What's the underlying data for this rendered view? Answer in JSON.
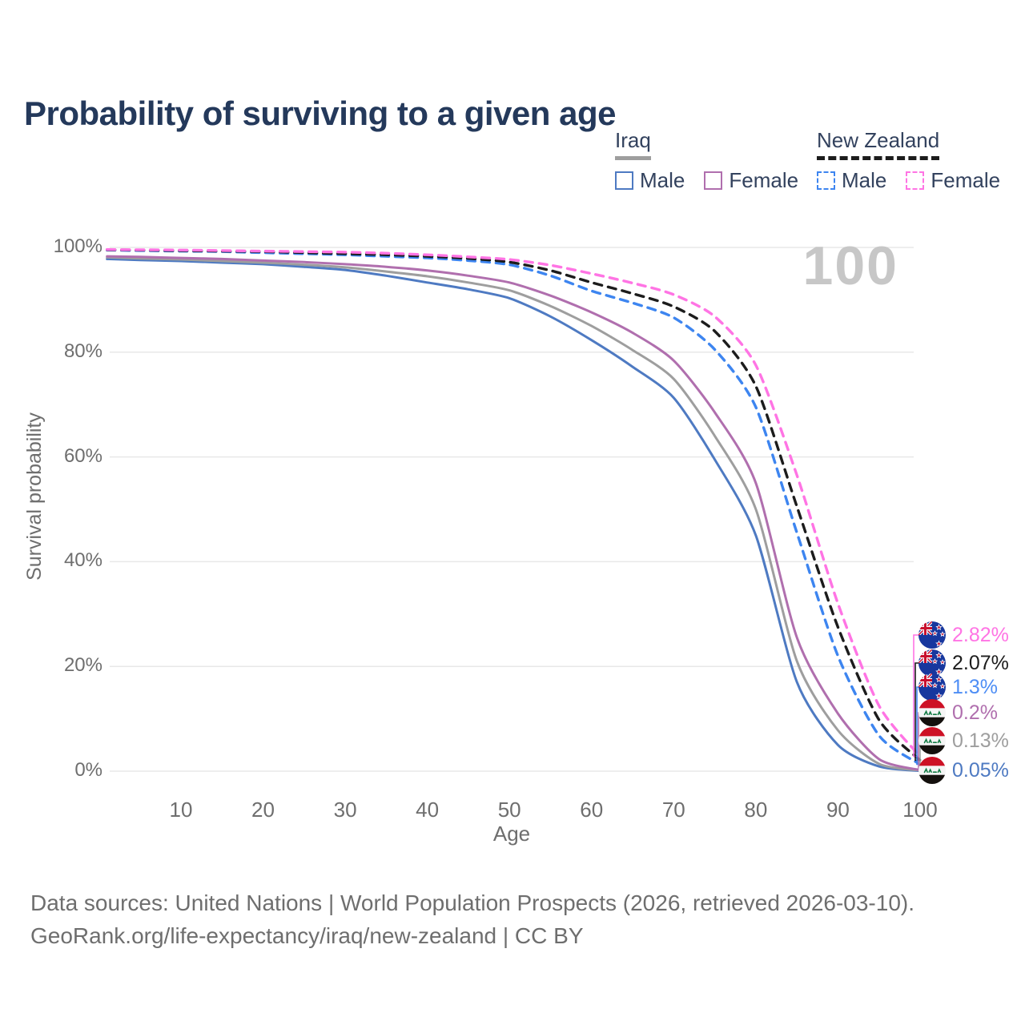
{
  "title": "Probability of surviving to a given age",
  "hover_age_label": "100",
  "legend": {
    "groups": [
      {
        "label": "Iraq",
        "line_style": "solid",
        "underline_color": "#9e9e9e",
        "items": [
          {
            "label": "Male",
            "color": "#4e7ac2",
            "dashed": false
          },
          {
            "label": "Female",
            "color": "#b06fae",
            "dashed": false
          }
        ]
      },
      {
        "label": "New Zealand",
        "line_style": "dashed",
        "underline_color": "#1c1c1c",
        "items": [
          {
            "label": "Male",
            "color": "#3d85f0",
            "dashed": true
          },
          {
            "label": "Female",
            "color": "#ff74e4",
            "dashed": true
          }
        ]
      }
    ]
  },
  "chart_data": {
    "type": "line",
    "title": "Probability of surviving to a given age",
    "xlabel": "Age",
    "ylabel": "Survival probability",
    "xlim": [
      0,
      100
    ],
    "ylim_percent": [
      0,
      100
    ],
    "x_ticks": [
      10,
      20,
      30,
      40,
      50,
      60,
      70,
      80,
      90,
      100
    ],
    "y_ticks_percent": [
      0,
      20,
      40,
      60,
      80,
      100
    ],
    "grid": "horizontal",
    "legend_position": "top-right",
    "hover_age": "100",
    "ages": [
      1,
      5,
      10,
      15,
      20,
      25,
      30,
      35,
      40,
      45,
      50,
      55,
      60,
      65,
      70,
      75,
      80,
      85,
      90,
      95,
      100
    ],
    "series": [
      {
        "name": "Iraq Male",
        "country": "Iraq",
        "sex": "Male",
        "flag": "iraq",
        "color": "#4e7ac2",
        "dashed": false,
        "end_label": "0.05%",
        "end_label_color": "#4e7ac2",
        "values": [
          97.8,
          97.6,
          97.4,
          97.1,
          96.8,
          96.3,
          95.7,
          94.6,
          93.3,
          92.0,
          90.3,
          86.8,
          82.3,
          77.2,
          71.3,
          59.5,
          45.0,
          17.0,
          5.0,
          0.9,
          0.05
        ]
      },
      {
        "name": "Iraq Both sexes",
        "country": "Iraq",
        "sex": "Both",
        "flag": "iraq",
        "color": "#9e9e9e",
        "dashed": false,
        "end_label": "0.13%",
        "end_label_color": "#9e9e9e",
        "values": [
          98.1,
          97.9,
          97.7,
          97.4,
          97.1,
          96.7,
          96.2,
          95.4,
          94.5,
          93.3,
          91.8,
          88.8,
          85.0,
          80.4,
          74.9,
          64.0,
          50.0,
          21.0,
          7.8,
          1.4,
          0.13
        ]
      },
      {
        "name": "Iraq Female",
        "country": "Iraq",
        "sex": "Female",
        "flag": "iraq",
        "color": "#b06fae",
        "dashed": false,
        "end_label": "0.2%",
        "end_label_color": "#b06fae",
        "values": [
          98.3,
          98.2,
          98.0,
          97.8,
          97.5,
          97.2,
          96.8,
          96.3,
          95.6,
          94.6,
          93.3,
          90.8,
          87.6,
          83.7,
          78.4,
          68.5,
          55.0,
          25.5,
          11.0,
          2.3,
          0.2
        ]
      },
      {
        "name": "New Zealand Male",
        "country": "New Zealand",
        "sex": "Male",
        "flag": "new-zealand",
        "color": "#3d85f0",
        "dashed": true,
        "end_label": "1.3%",
        "end_label_color": "#4e8ef5",
        "values": [
          99.5,
          99.4,
          99.3,
          99.2,
          99.0,
          98.8,
          98.6,
          98.3,
          98.0,
          97.5,
          96.7,
          94.6,
          91.7,
          89.4,
          86.6,
          80.5,
          69.5,
          45.5,
          22.0,
          6.8,
          1.3
        ]
      },
      {
        "name": "New Zealand Both sexes",
        "country": "New Zealand",
        "sex": "Both",
        "flag": "new-zealand",
        "color": "#1c1c1c",
        "dashed": true,
        "end_label": "2.07%",
        "end_label_color": "#1c1c1c",
        "values": [
          99.55,
          99.5,
          99.4,
          99.3,
          99.2,
          99.0,
          98.8,
          98.6,
          98.3,
          97.9,
          97.2,
          95.6,
          93.3,
          91.2,
          88.7,
          84.0,
          73.5,
          50.5,
          27.5,
          9.8,
          2.07
        ]
      },
      {
        "name": "New Zealand Female",
        "country": "New Zealand",
        "sex": "Female",
        "flag": "new-zealand",
        "color": "#ff74e4",
        "dashed": true,
        "end_label": "2.82%",
        "end_label_color": "#ff74e4",
        "values": [
          99.6,
          99.55,
          99.5,
          99.4,
          99.3,
          99.2,
          99.1,
          98.9,
          98.6,
          98.2,
          97.7,
          96.6,
          95.0,
          93.2,
          91.0,
          86.8,
          77.5,
          56.5,
          32.0,
          12.5,
          2.82
        ]
      }
    ]
  },
  "footer": {
    "line1": "Data sources: United Nations | World Population Prospects (2026, retrieved 2026-03-10).",
    "line2": "GeoRank.org/life-expectancy/iraq/new-zealand | CC BY"
  }
}
